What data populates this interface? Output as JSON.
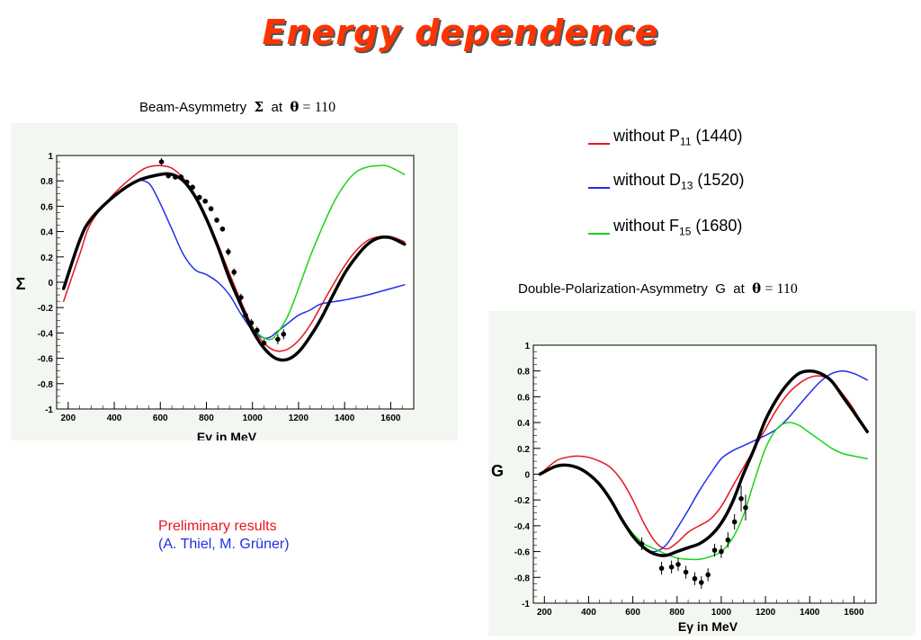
{
  "title": "Energy dependence",
  "plot1": {
    "title_prefix": "Beam-Asymmetry",
    "title_symbol": "Σ",
    "title_at": "at",
    "title_theta": "θ",
    "title_eq": "=",
    "title_angle": "110"
  },
  "plot2": {
    "title_prefix": "Double-Polarization-Asymmetry",
    "title_symbol": "G",
    "title_at": "at",
    "title_theta": "θ",
    "title_eq": "=",
    "title_angle": "110"
  },
  "legend": [
    {
      "prefix": "without P",
      "sub": "11",
      "suffix": " (1440)",
      "color": "#e8141b"
    },
    {
      "prefix": "without D",
      "sub": "13",
      "suffix": " (1520)",
      "color": "#1f2fe8"
    },
    {
      "prefix": "without F",
      "sub": "15",
      "suffix": " (1680)",
      "color": "#17d417"
    }
  ],
  "note": {
    "line1": "Preliminary results",
    "line2": "(A. Thiel, M. Grüner)",
    "line1_color": "#e8141b",
    "line2_color": "#1f2fe8"
  },
  "chart_data": [
    {
      "type": "line",
      "title": "Beam-Asymmetry Σ at θ = 110",
      "xlabel": "Eγ in MeV",
      "ylabel": "Σ",
      "xlim": [
        150,
        1700
      ],
      "ylim": [
        -1,
        1
      ],
      "xticks": [
        200,
        400,
        600,
        800,
        1000,
        1200,
        1400,
        1600
      ],
      "yticks": [
        -1,
        -0.8,
        -0.6,
        -0.4,
        -0.2,
        0,
        0.2,
        0.4,
        0.6,
        0.8,
        1
      ],
      "series": [
        {
          "key": "full",
          "color": "#000000",
          "width": 3.5,
          "x": [
            180,
            250,
            300,
            400,
            500,
            600,
            650,
            700,
            750,
            800,
            850,
            900,
            950,
            1000,
            1050,
            1100,
            1150,
            1200,
            1250,
            1300,
            1350,
            1400,
            1450,
            1500,
            1550,
            1600,
            1660
          ],
          "y": [
            -0.05,
            0.33,
            0.5,
            0.68,
            0.8,
            0.85,
            0.85,
            0.8,
            0.68,
            0.5,
            0.28,
            0.03,
            -0.18,
            -0.38,
            -0.52,
            -0.6,
            -0.61,
            -0.55,
            -0.43,
            -0.28,
            -0.1,
            0.07,
            0.2,
            0.3,
            0.35,
            0.35,
            0.3
          ]
        },
        {
          "key": "noP11",
          "color": "#e8141b",
          "width": 1.5,
          "x": [
            180,
            250,
            300,
            400,
            500,
            550,
            600,
            650,
            700,
            750,
            800,
            850,
            900,
            950,
            1000,
            1050,
            1100,
            1150,
            1200,
            1250,
            1300,
            1350,
            1400,
            1450,
            1500,
            1550,
            1600,
            1660
          ],
          "y": [
            -0.15,
            0.22,
            0.47,
            0.7,
            0.86,
            0.91,
            0.92,
            0.9,
            0.82,
            0.68,
            0.5,
            0.3,
            0.07,
            -0.15,
            -0.35,
            -0.48,
            -0.54,
            -0.53,
            -0.46,
            -0.34,
            -0.18,
            -0.02,
            0.13,
            0.25,
            0.33,
            0.36,
            0.36,
            0.32
          ]
        },
        {
          "key": "noD13",
          "color": "#1f2fe8",
          "width": 1.5,
          "x": [
            180,
            250,
            300,
            400,
            450,
            500,
            530,
            560,
            600,
            650,
            700,
            750,
            800,
            850,
            900,
            950,
            1000,
            1050,
            1080,
            1100,
            1150,
            1200,
            1250,
            1300,
            1400,
            1500,
            1600,
            1660
          ],
          "y": [
            -0.05,
            0.33,
            0.5,
            0.68,
            0.75,
            0.8,
            0.8,
            0.76,
            0.62,
            0.42,
            0.22,
            0.1,
            0.06,
            0.0,
            -0.1,
            -0.25,
            -0.38,
            -0.44,
            -0.43,
            -0.4,
            -0.33,
            -0.26,
            -0.22,
            -0.17,
            -0.14,
            -0.1,
            -0.05,
            -0.02
          ]
        },
        {
          "key": "noF15",
          "color": "#17d417",
          "width": 1.5,
          "x": [
            180,
            250,
            300,
            400,
            500,
            600,
            650,
            700,
            750,
            800,
            850,
            900,
            950,
            1000,
            1050,
            1080,
            1100,
            1150,
            1200,
            1250,
            1300,
            1350,
            1400,
            1450,
            1500,
            1550,
            1580,
            1620,
            1660
          ],
          "y": [
            -0.05,
            0.33,
            0.5,
            0.68,
            0.8,
            0.85,
            0.85,
            0.8,
            0.68,
            0.5,
            0.28,
            0.03,
            -0.18,
            -0.36,
            -0.44,
            -0.45,
            -0.42,
            -0.28,
            -0.05,
            0.2,
            0.42,
            0.62,
            0.77,
            0.87,
            0.91,
            0.92,
            0.92,
            0.89,
            0.85
          ]
        }
      ],
      "points": {
        "x": [
          605,
          635,
          665,
          690,
          715,
          740,
          770,
          795,
          820,
          845,
          870,
          895,
          920,
          950,
          970,
          995,
          1020,
          1050,
          1110,
          1135
        ],
        "y": [
          0.95,
          0.84,
          0.83,
          0.83,
          0.79,
          0.75,
          0.67,
          0.64,
          0.58,
          0.49,
          0.42,
          0.24,
          0.08,
          -0.12,
          -0.26,
          -0.32,
          -0.38,
          -0.48,
          -0.45,
          -0.41
        ],
        "err": [
          0.03,
          0.02,
          0.02,
          0.02,
          0.02,
          0.02,
          0.02,
          0.02,
          0.02,
          0.02,
          0.02,
          0.03,
          0.03,
          0.03,
          0.03,
          0.03,
          0.03,
          0.03,
          0.04,
          0.04
        ]
      }
    },
    {
      "type": "line",
      "title": "Double-Polarization-Asymmetry G at θ = 110",
      "xlabel": "Eγ in MeV",
      "ylabel": "G",
      "xlim": [
        150,
        1700
      ],
      "ylim": [
        -1,
        1
      ],
      "xticks": [
        200,
        400,
        600,
        800,
        1000,
        1200,
        1400,
        1600
      ],
      "yticks": [
        -1,
        -0.8,
        -0.6,
        -0.4,
        -0.2,
        0,
        0.2,
        0.4,
        0.6,
        0.8,
        1
      ],
      "series": [
        {
          "key": "full",
          "color": "#000000",
          "width": 3.5,
          "x": [
            180,
            250,
            300,
            350,
            400,
            450,
            500,
            550,
            600,
            650,
            700,
            750,
            800,
            850,
            900,
            950,
            1000,
            1050,
            1100,
            1150,
            1200,
            1250,
            1300,
            1350,
            1400,
            1450,
            1500,
            1550,
            1600,
            1660
          ],
          "y": [
            0.0,
            0.06,
            0.07,
            0.05,
            0.0,
            -0.08,
            -0.2,
            -0.35,
            -0.48,
            -0.57,
            -0.62,
            -0.63,
            -0.6,
            -0.57,
            -0.54,
            -0.48,
            -0.38,
            -0.22,
            0.0,
            0.2,
            0.42,
            0.58,
            0.7,
            0.78,
            0.8,
            0.78,
            0.72,
            0.6,
            0.48,
            0.33
          ]
        },
        {
          "key": "noP11",
          "color": "#e8141b",
          "width": 1.5,
          "x": [
            180,
            250,
            300,
            350,
            400,
            450,
            500,
            550,
            600,
            650,
            700,
            750,
            800,
            850,
            900,
            950,
            1000,
            1050,
            1100,
            1150,
            1200,
            1250,
            1300,
            1350,
            1400,
            1450,
            1500,
            1550,
            1600,
            1660
          ],
          "y": [
            0.0,
            0.1,
            0.13,
            0.14,
            0.13,
            0.1,
            0.05,
            -0.05,
            -0.2,
            -0.38,
            -0.52,
            -0.58,
            -0.53,
            -0.45,
            -0.4,
            -0.35,
            -0.25,
            -0.1,
            0.05,
            0.2,
            0.35,
            0.5,
            0.62,
            0.7,
            0.75,
            0.76,
            0.72,
            0.62,
            0.5,
            0.32
          ]
        },
        {
          "key": "noD13",
          "color": "#1f2fe8",
          "width": 1.5,
          "x": [
            180,
            250,
            300,
            350,
            400,
            450,
            500,
            550,
            600,
            650,
            700,
            750,
            800,
            850,
            900,
            950,
            1000,
            1050,
            1100,
            1150,
            1200,
            1250,
            1300,
            1350,
            1400,
            1450,
            1500,
            1550,
            1600,
            1660
          ],
          "y": [
            0.0,
            0.06,
            0.07,
            0.05,
            0.0,
            -0.08,
            -0.2,
            -0.35,
            -0.48,
            -0.57,
            -0.6,
            -0.55,
            -0.42,
            -0.28,
            -0.13,
            0.0,
            0.12,
            0.18,
            0.22,
            0.26,
            0.3,
            0.35,
            0.43,
            0.53,
            0.63,
            0.72,
            0.78,
            0.8,
            0.78,
            0.73
          ]
        },
        {
          "key": "noF15",
          "color": "#17d417",
          "width": 1.5,
          "x": [
            180,
            250,
            300,
            350,
            400,
            450,
            500,
            550,
            600,
            650,
            700,
            750,
            800,
            850,
            900,
            950,
            1000,
            1050,
            1100,
            1150,
            1200,
            1250,
            1300,
            1350,
            1400,
            1450,
            1500,
            1550,
            1600,
            1660
          ],
          "y": [
            0.0,
            0.06,
            0.07,
            0.05,
            0.0,
            -0.08,
            -0.2,
            -0.35,
            -0.46,
            -0.54,
            -0.58,
            -0.62,
            -0.65,
            -0.66,
            -0.66,
            -0.64,
            -0.6,
            -0.5,
            -0.32,
            -0.05,
            0.2,
            0.35,
            0.4,
            0.38,
            0.32,
            0.26,
            0.2,
            0.16,
            0.14,
            0.12
          ]
        }
      ],
      "points": {
        "x": [
          640,
          730,
          775,
          805,
          840,
          880,
          910,
          940,
          970,
          1000,
          1030,
          1060,
          1090,
          1110
        ],
        "y": [
          -0.54,
          -0.73,
          -0.72,
          -0.7,
          -0.76,
          -0.81,
          -0.84,
          -0.78,
          -0.59,
          -0.6,
          -0.51,
          -0.37,
          -0.19,
          -0.26
        ],
        "err": [
          0.05,
          0.05,
          0.05,
          0.05,
          0.05,
          0.05,
          0.05,
          0.05,
          0.05,
          0.05,
          0.06,
          0.06,
          0.1,
          0.1
        ]
      }
    }
  ]
}
